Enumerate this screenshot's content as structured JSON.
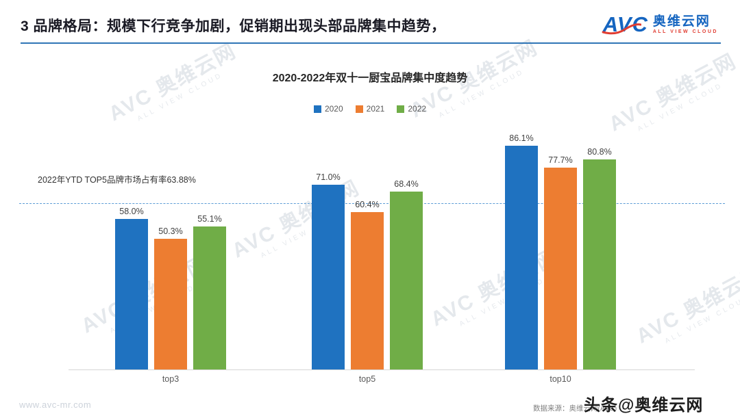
{
  "header": {
    "title": "3 品牌格局：规模下行竞争加剧，促销期出现头部品牌集中趋势，",
    "logo": {
      "brand": "AVC",
      "name": "奥维云网",
      "tagline": "ALL VIEW CLOUD"
    }
  },
  "watermark": {
    "brand": "AVC",
    "name": "奥维云网",
    "tagline": "ALL VIEW CLOUD"
  },
  "chart_data": {
    "type": "bar",
    "title": "2020-2022年双十一厨宝品牌集中度趋势",
    "categories": [
      "top3",
      "top5",
      "top10"
    ],
    "series": [
      {
        "name": "2020",
        "color": "#1F72C0",
        "values": [
          58.0,
          71.0,
          86.1
        ]
      },
      {
        "name": "2021",
        "color": "#ED7D31",
        "values": [
          50.3,
          60.4,
          77.7
        ]
      },
      {
        "name": "2022",
        "color": "#70AD47",
        "values": [
          55.1,
          68.4,
          80.8
        ]
      }
    ],
    "value_suffix": "%",
    "annotation": "2022年YTD TOP5品牌市场占有率63.88%",
    "reference_line": {
      "value": 63.88,
      "style": "dashed",
      "color": "#5B9BD5"
    },
    "ylim": [
      0,
      100
    ],
    "legend_position": "top",
    "grid": false
  },
  "footer": {
    "website": "www.avc-mr.com",
    "source": "数据来源：奥维云网(AVC)",
    "overlay_watermark": "头条@奥维云网"
  }
}
